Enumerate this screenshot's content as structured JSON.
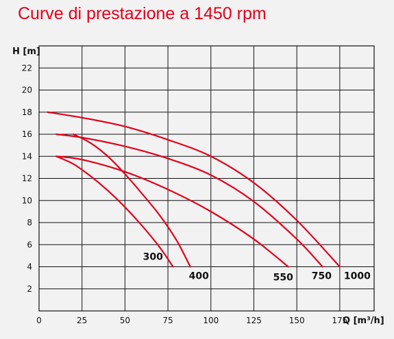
{
  "chart_data": {
    "type": "line",
    "title": "Curve di prestazione a 1450 rpm",
    "xlabel": "Q [m³/h]",
    "ylabel": "H [m]",
    "xlim": [
      0,
      195
    ],
    "ylim": [
      0,
      24
    ],
    "xticks": [
      0,
      25,
      50,
      75,
      100,
      125,
      150,
      175
    ],
    "yticks": [
      2,
      4,
      6,
      8,
      10,
      12,
      14,
      16,
      18,
      20,
      22
    ],
    "grid": true,
    "colors": {
      "curves": "#e2001a",
      "title": "#e2001a",
      "grid": "#111111"
    },
    "series": [
      {
        "name": "300",
        "x": [
          10,
          20,
          30,
          40,
          50,
          60,
          70,
          78
        ],
        "y": [
          14,
          13.3,
          12.2,
          10.9,
          9.4,
          7.7,
          5.8,
          4
        ]
      },
      {
        "name": "400",
        "x": [
          20,
          30,
          40,
          50,
          60,
          70,
          80,
          88
        ],
        "y": [
          16,
          15.2,
          14.0,
          12.4,
          10.6,
          8.7,
          6.4,
          4
        ]
      },
      {
        "name": "550",
        "x": [
          10,
          25,
          50,
          75,
          100,
          125,
          145
        ],
        "y": [
          14,
          13.7,
          12.6,
          11.0,
          9.0,
          6.5,
          4
        ]
      },
      {
        "name": "750",
        "x": [
          10,
          25,
          50,
          75,
          100,
          125,
          150,
          165
        ],
        "y": [
          16,
          15.7,
          14.9,
          13.8,
          12.3,
          9.9,
          6.5,
          4
        ]
      },
      {
        "name": "1000",
        "x": [
          5,
          25,
          50,
          75,
          100,
          125,
          150,
          175
        ],
        "y": [
          18,
          17.5,
          16.7,
          15.5,
          14.0,
          11.6,
          8.2,
          4
        ]
      }
    ]
  }
}
